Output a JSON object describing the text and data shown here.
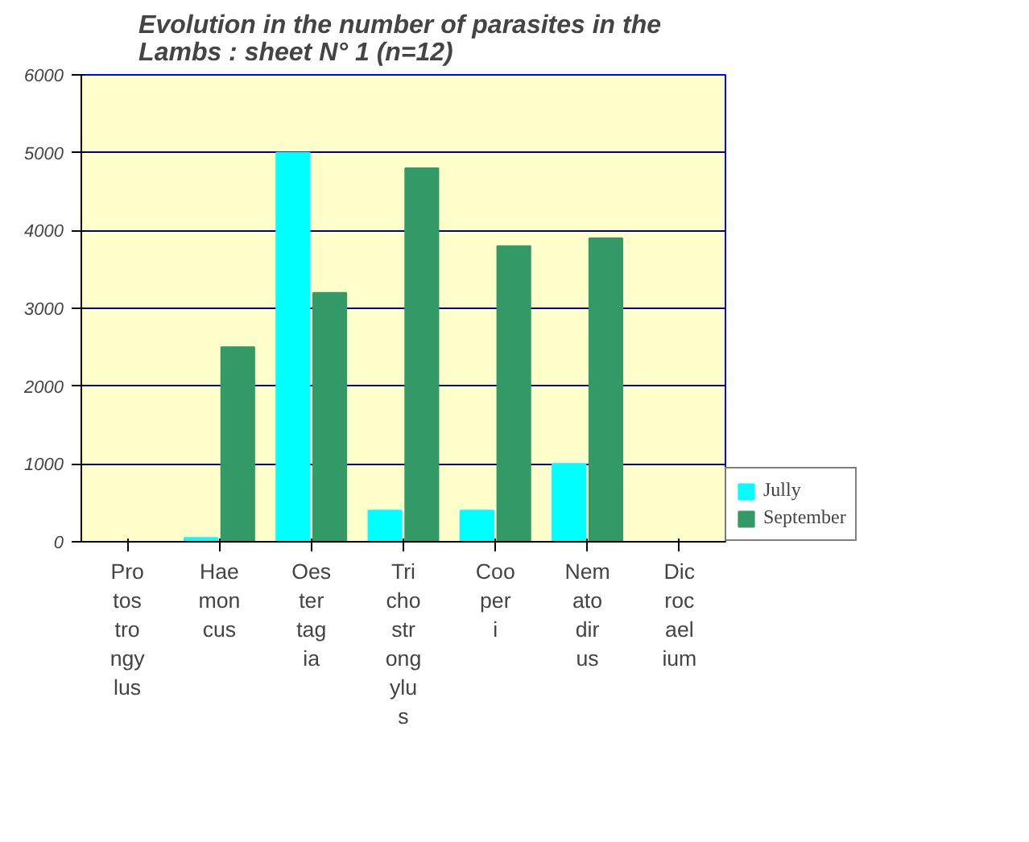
{
  "chart_data": {
    "type": "bar",
    "title": "Evolution in the number of parasites in  the\nLambs : sheet N° 1   (n=12)",
    "categories": [
      "Protostrongylus",
      "Haemoncus",
      "Oestertagia",
      "Trichostrongylus",
      "Cooperi",
      "Nematodirus",
      "Dicrocaelium"
    ],
    "series": [
      {
        "name": "Jully",
        "color": "#00ffff",
        "values": [
          0,
          50,
          5000,
          400,
          400,
          1000,
          0
        ]
      },
      {
        "name": "September",
        "color": "#339966",
        "values": [
          0,
          2500,
          3200,
          4800,
          3800,
          3900,
          0
        ]
      }
    ],
    "ylim": [
      0,
      6000
    ],
    "yticks": [
      0,
      1000,
      2000,
      3000,
      4000,
      5000,
      6000
    ],
    "grid": "y",
    "legend": "bottom right"
  }
}
